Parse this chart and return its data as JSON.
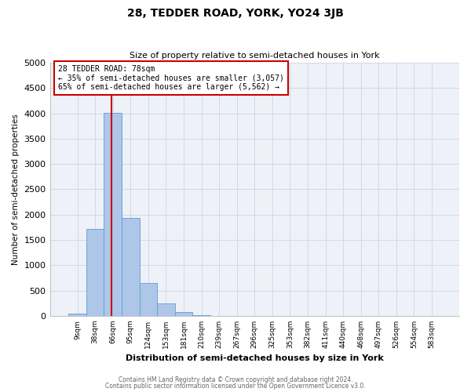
{
  "title": "28, TEDDER ROAD, YORK, YO24 3JB",
  "subtitle": "Size of property relative to semi-detached houses in York",
  "xlabel": "Distribution of semi-detached houses by size in York",
  "ylabel": "Number of semi-detached properties",
  "bar_labels": [
    "9sqm",
    "38sqm",
    "66sqm",
    "95sqm",
    "124sqm",
    "153sqm",
    "181sqm",
    "210sqm",
    "239sqm",
    "267sqm",
    "296sqm",
    "325sqm",
    "353sqm",
    "382sqm",
    "411sqm",
    "440sqm",
    "468sqm",
    "497sqm",
    "526sqm",
    "554sqm",
    "583sqm"
  ],
  "bar_values": [
    50,
    1720,
    4010,
    1930,
    650,
    240,
    75,
    10,
    0,
    0,
    0,
    0,
    0,
    0,
    0,
    0,
    0,
    0,
    0,
    0,
    0
  ],
  "bar_color": "#aec6e8",
  "bar_edge_color": "#5a9fd4",
  "vline_color": "#cc0000",
  "annotation_title": "28 TEDDER ROAD: 78sqm",
  "annotation_line2": "← 35% of semi-detached houses are smaller (3,057)",
  "annotation_line3": "65% of semi-detached houses are larger (5,562) →",
  "annotation_box_facecolor": "#ffffff",
  "annotation_box_edge": "#cc0000",
  "ylim": [
    0,
    5000
  ],
  "yticks": [
    0,
    500,
    1000,
    1500,
    2000,
    2500,
    3000,
    3500,
    4000,
    4500,
    5000
  ],
  "grid_color": "#d0d8e8",
  "bg_color": "#eef1f8",
  "plot_bg_color": "#eef1f8",
  "title_fontsize": 10,
  "subtitle_fontsize": 8,
  "footer1": "Contains HM Land Registry data © Crown copyright and database right 2024.",
  "footer2": "Contains public sector information licensed under the Open Government Licence v3.0.",
  "footer_color": "#666666"
}
